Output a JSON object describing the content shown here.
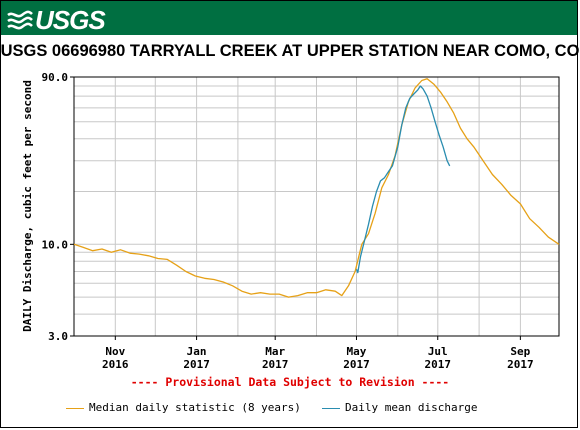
{
  "header": {
    "logo_text": "USGS",
    "brand_color": "#006f41"
  },
  "chart_title": "USGS 06696980 TARRYALL CREEK AT UPPER STATION NEAR COMO, CO",
  "provisional_note": "---- Provisional Data Subject to Revision ----",
  "chart_data": {
    "type": "line",
    "title": "USGS 06696980 TARRYALL CREEK AT UPPER STATION NEAR COMO, CO",
    "ylabel": "DAILY Discharge, cubic feet per second",
    "xlabel": "",
    "y_scale": "log",
    "ylim": [
      3.0,
      90.0
    ],
    "y_ticks": [
      "3.0",
      "10.0",
      "90.0"
    ],
    "x_ticks": [
      {
        "month": "Nov",
        "year": "2016",
        "date": "2016-11-01"
      },
      {
        "month": "Jan",
        "year": "2017",
        "date": "2017-01-01"
      },
      {
        "month": "Mar",
        "year": "2017",
        "date": "2017-03-01"
      },
      {
        "month": "May",
        "year": "2017",
        "date": "2017-05-01"
      },
      {
        "month": "Jul",
        "year": "2017",
        "date": "2017-07-01"
      },
      {
        "month": "Sep",
        "year": "2017",
        "date": "2017-09-01"
      }
    ],
    "xlim": [
      "2016-10-01",
      "2017-09-30"
    ],
    "grid": true,
    "legend_position": "bottom",
    "series": [
      {
        "name": "Median daily statistic (8 years)",
        "color": "#e6a117",
        "points": [
          [
            "2016-10-01",
            10.0
          ],
          [
            "2016-10-08",
            9.6
          ],
          [
            "2016-10-15",
            9.2
          ],
          [
            "2016-10-22",
            9.4
          ],
          [
            "2016-10-29",
            9.0
          ],
          [
            "2016-11-05",
            9.3
          ],
          [
            "2016-11-12",
            8.9
          ],
          [
            "2016-11-19",
            8.8
          ],
          [
            "2016-11-26",
            8.6
          ],
          [
            "2016-12-03",
            8.3
          ],
          [
            "2016-12-10",
            8.2
          ],
          [
            "2016-12-17",
            7.6
          ],
          [
            "2016-12-24",
            7.0
          ],
          [
            "2016-12-31",
            6.6
          ],
          [
            "2017-01-07",
            6.4
          ],
          [
            "2017-01-14",
            6.3
          ],
          [
            "2017-01-21",
            6.1
          ],
          [
            "2017-01-28",
            5.8
          ],
          [
            "2017-02-04",
            5.4
          ],
          [
            "2017-02-11",
            5.2
          ],
          [
            "2017-02-18",
            5.3
          ],
          [
            "2017-02-25",
            5.2
          ],
          [
            "2017-03-04",
            5.2
          ],
          [
            "2017-03-11",
            5.0
          ],
          [
            "2017-03-18",
            5.1
          ],
          [
            "2017-03-25",
            5.3
          ],
          [
            "2017-04-01",
            5.3
          ],
          [
            "2017-04-08",
            5.5
          ],
          [
            "2017-04-15",
            5.4
          ],
          [
            "2017-04-20",
            5.1
          ],
          [
            "2017-04-25",
            5.8
          ],
          [
            "2017-04-30",
            7.0
          ],
          [
            "2017-05-05",
            10.0
          ],
          [
            "2017-05-10",
            11.5
          ],
          [
            "2017-05-15",
            15.0
          ],
          [
            "2017-05-20",
            21.0
          ],
          [
            "2017-05-25",
            25.0
          ],
          [
            "2017-05-30",
            32.0
          ],
          [
            "2017-06-04",
            48.0
          ],
          [
            "2017-06-09",
            65.0
          ],
          [
            "2017-06-14",
            78.0
          ],
          [
            "2017-06-19",
            86.0
          ],
          [
            "2017-06-23",
            88.0
          ],
          [
            "2017-06-28",
            82.0
          ],
          [
            "2017-07-03",
            74.0
          ],
          [
            "2017-07-08",
            65.0
          ],
          [
            "2017-07-13",
            56.0
          ],
          [
            "2017-07-18",
            46.0
          ],
          [
            "2017-07-23",
            40.0
          ],
          [
            "2017-07-28",
            36.0
          ],
          [
            "2017-08-04",
            30.0
          ],
          [
            "2017-08-11",
            25.0
          ],
          [
            "2017-08-18",
            22.0
          ],
          [
            "2017-08-25",
            19.0
          ],
          [
            "2017-09-01",
            17.0
          ],
          [
            "2017-09-08",
            14.0
          ],
          [
            "2017-09-15",
            12.5
          ],
          [
            "2017-09-22",
            11.0
          ],
          [
            "2017-09-30",
            10.0
          ]
        ]
      },
      {
        "name": "Daily mean discharge",
        "color": "#2a8db0",
        "points": [
          [
            "2017-05-01",
            7.2
          ],
          [
            "2017-05-02",
            6.9
          ],
          [
            "2017-05-04",
            8.5
          ],
          [
            "2017-05-07",
            10.5
          ],
          [
            "2017-05-10",
            13.0
          ],
          [
            "2017-05-13",
            16.5
          ],
          [
            "2017-05-16",
            20.0
          ],
          [
            "2017-05-19",
            23.0
          ],
          [
            "2017-05-22",
            24.0
          ],
          [
            "2017-05-25",
            26.0
          ],
          [
            "2017-05-28",
            28.0
          ],
          [
            "2017-06-01",
            36.0
          ],
          [
            "2017-06-04",
            48.0
          ],
          [
            "2017-06-07",
            60.0
          ],
          [
            "2017-06-10",
            68.0
          ],
          [
            "2017-06-13",
            72.0
          ],
          [
            "2017-06-16",
            76.0
          ],
          [
            "2017-06-18",
            80.0
          ],
          [
            "2017-06-20",
            77.0
          ],
          [
            "2017-06-23",
            70.0
          ],
          [
            "2017-06-26",
            60.0
          ],
          [
            "2017-06-29",
            50.0
          ],
          [
            "2017-07-02",
            42.0
          ],
          [
            "2017-07-05",
            36.0
          ],
          [
            "2017-07-08",
            30.0
          ],
          [
            "2017-07-10",
            28.0
          ]
        ]
      }
    ]
  }
}
